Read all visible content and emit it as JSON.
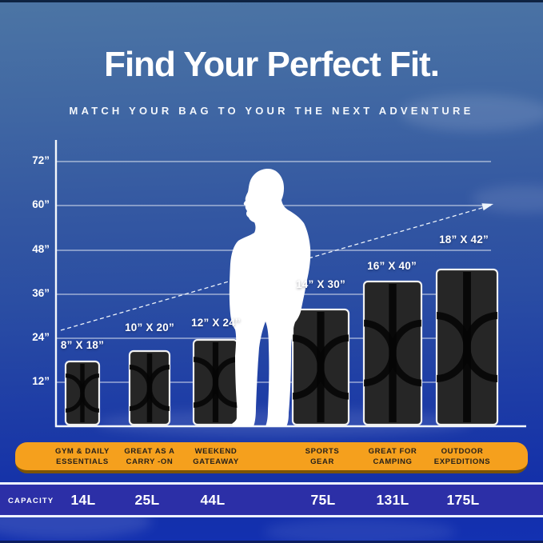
{
  "header": {
    "title": "Find Your Perfect Fit.",
    "subtitle": "MATCH YOUR BAG TO YOUR THE NEXT ADVENTURE"
  },
  "chart_data": {
    "type": "bar",
    "title": "Find Your Perfect Fit.",
    "subtitle": "MATCH YOUR BAG TO YOUR THE NEXT ADVENTURE",
    "y_axis": {
      "unit": "inches",
      "tick_labels": [
        "72”",
        "60”",
        "48”",
        "36”",
        "24”",
        "12”"
      ],
      "tick_values": [
        72,
        60,
        48,
        36,
        24,
        12
      ],
      "range_in": [
        0,
        78
      ],
      "grid": true
    },
    "series": [
      {
        "name": "duffel bag sizes",
        "points": [
          {
            "size_label": "8” X 18”",
            "width_in": 8,
            "height_in": 18,
            "capacity": "14L",
            "category": "GYM & DAILY\nESSENTIALS"
          },
          {
            "size_label": "10” X 20”",
            "width_in": 10,
            "height_in": 20,
            "capacity": "25L",
            "category": "GREAT AS A\nCARRY -ON"
          },
          {
            "size_label": "12” X 24”",
            "width_in": 12,
            "height_in": 24,
            "capacity": "44L",
            "category": "WEEKEND\nGATEAWAY"
          },
          {
            "size_label": "14” X 30”",
            "width_in": 14,
            "height_in": 30,
            "capacity": "75L",
            "category": "SPORTS\nGEAR"
          },
          {
            "size_label": "16” X 40”",
            "width_in": 16,
            "height_in": 40,
            "capacity": "131L",
            "category": "GREAT FOR\nCAMPING"
          },
          {
            "size_label": "18” X 42”",
            "width_in": 18,
            "height_in": 42,
            "capacity": "175L",
            "category": "OUTDOOR\nEXPEDITIONS"
          }
        ]
      }
    ],
    "annotations": [
      "dashed ascending arrow from smallest to largest bag",
      "white human silhouette shown for scale between 12\" X 24\" and 14\" X 30\" bags"
    ],
    "legend": null
  },
  "capacity_row": {
    "label": "CAPACITY",
    "values": [
      "14L",
      "25L",
      "44L",
      "75L",
      "131L",
      "175L"
    ]
  },
  "colors": {
    "background_top": "#4C75A4",
    "background_bottom": "#1331B2",
    "banner_orange": "#F5A01D",
    "banner_text": "#26211A",
    "capacity_band": "#2C2FA7",
    "bag_body": "#262626",
    "bag_accent": "#050505",
    "text_white": "#FFFFFF"
  }
}
